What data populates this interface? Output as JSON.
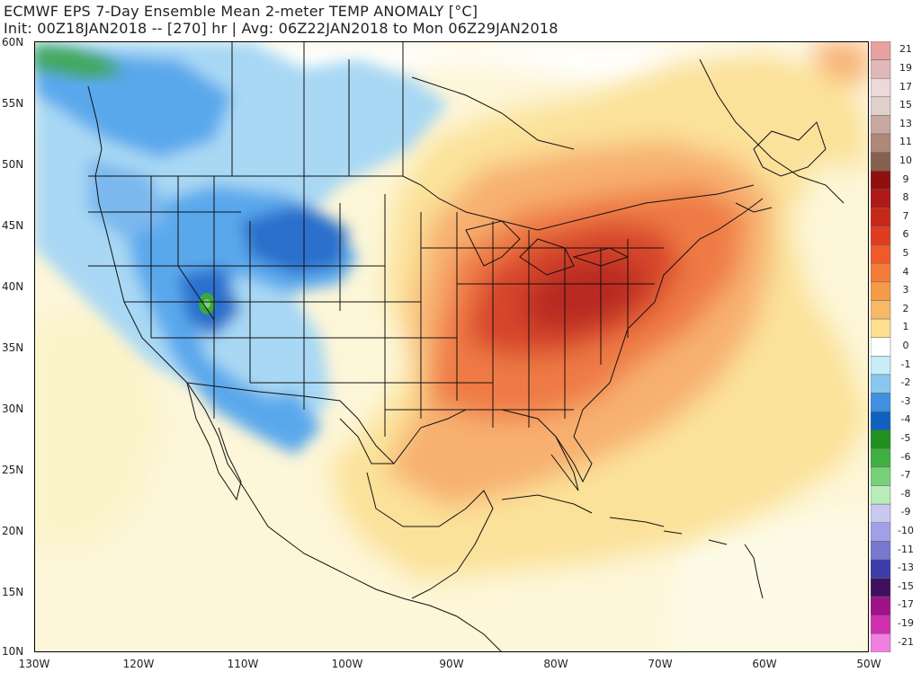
{
  "title_line1": "ECMWF EPS 7-Day Ensemble Mean 2-meter TEMP ANOMALY [°C]",
  "title_line2": "Init: 00Z18JAN2018 -- [270] hr | Avg: 06Z22JAN2018 to Mon 06Z29JAN2018",
  "lat_labels": [
    "60N",
    "55N",
    "50N",
    "45N",
    "40N",
    "35N",
    "30N",
    "25N",
    "20N",
    "15N",
    "10N"
  ],
  "lon_labels": [
    "130W",
    "120W",
    "110W",
    "100W",
    "90W",
    "80W",
    "70W",
    "60W",
    "50W"
  ],
  "legend": {
    "labels": [
      "21",
      "19",
      "17",
      "15",
      "13",
      "11",
      "10",
      "9",
      "8",
      "7",
      "6",
      "5",
      "4",
      "3",
      "2",
      "1",
      "0",
      "-1",
      "-2",
      "-3",
      "-4",
      "-5",
      "-6",
      "-7",
      "-8",
      "-9",
      "-10",
      "-11",
      "-13",
      "-15",
      "-17",
      "-19",
      "-21"
    ],
    "colors": [
      "#e8a0a0",
      "#e0b8b8",
      "#eed8d8",
      "#e0d0cc",
      "#c8a8a0",
      "#b08878",
      "#886050",
      "#901010",
      "#b01818",
      "#c82818",
      "#e03c20",
      "#f05a28",
      "#f47c38",
      "#f59a48",
      "#f8b868",
      "#fce090",
      "#ffffff",
      "#c8ecf8",
      "#88c8f0",
      "#4090e0",
      "#1060c0",
      "#209020",
      "#40b040",
      "#78d078",
      "#b8ecb8",
      "#c8c8f0",
      "#a0a0e8",
      "#7878d0",
      "#3c3ca8",
      "#401060",
      "#a01088",
      "#d030b0",
      "#f080e0"
    ]
  },
  "colors": {
    "ocean": "#fdf6d8",
    "land_neutral": "#fefefe",
    "cold_light": "#a8d8f4",
    "cold_mid": "#5aa8ec",
    "cold_deep": "#2a70cc",
    "warm_light": "#fbe29a",
    "warm_mid": "#f7b070",
    "warm_strong": "#ef7a44",
    "warm_core": "#d6442c",
    "warm_max": "#b82a22",
    "green": "#3aa83a",
    "border": "#111111"
  }
}
